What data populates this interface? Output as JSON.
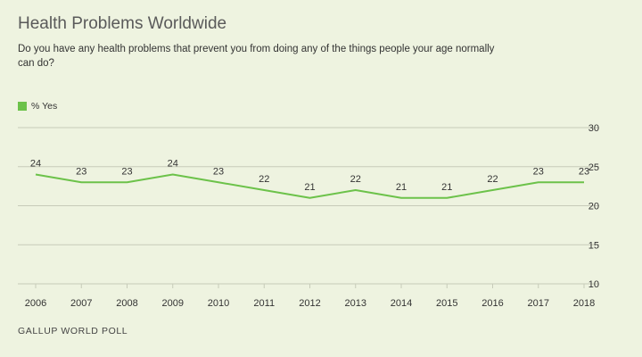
{
  "title": "Health Problems Worldwide",
  "subtitle": "Do you have any health problems that prevent you from doing any of the things people your age normally can do?",
  "source": "GALLUP WORLD POLL",
  "colors": {
    "series": "#6cc24a",
    "grid": "#c7cbb9",
    "text": "#333333",
    "background": "#eef3e0"
  },
  "chart_data": {
    "type": "line",
    "x": [
      "2006",
      "2007",
      "2008",
      "2009",
      "2010",
      "2011",
      "2012",
      "2013",
      "2014",
      "2015",
      "2016",
      "2017",
      "2018"
    ],
    "series": [
      {
        "name": "% Yes",
        "values": [
          24,
          23,
          23,
          24,
          23,
          22,
          21,
          22,
          21,
          21,
          22,
          23,
          23
        ]
      }
    ],
    "y_ticks": [
      10,
      15,
      20,
      25,
      30
    ],
    "ylim": [
      10,
      30
    ],
    "grid": true,
    "legend_position": "top-left",
    "data_labels": true
  }
}
